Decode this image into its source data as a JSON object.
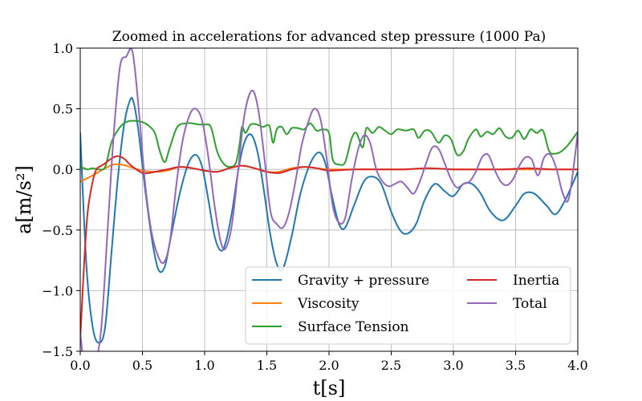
{
  "chart_data": {
    "type": "line",
    "title": "Zoomed in accelerations for advanced step pressure (1000 Pa)",
    "xlabel": "t[s]",
    "ylabel": "a[m/s²]",
    "xlim": [
      0,
      4
    ],
    "ylim": [
      -1.5,
      1.0
    ],
    "xticks": [
      0,
      0.5,
      1,
      1.5,
      2,
      2.5,
      3,
      3.5,
      4
    ],
    "xtick_labels": [
      "0.0",
      "0.5",
      "1.0",
      "1.5",
      "2.0",
      "2.5",
      "3.0",
      "3.5",
      "4.0"
    ],
    "yticks": [
      -1.5,
      -1,
      -0.5,
      0,
      0.5,
      1
    ],
    "ytick_labels": [
      "−1.5",
      "−1.0",
      "−0.5",
      "0.0",
      "0.5",
      "1.0"
    ],
    "grid": true,
    "legend_position": "lower-right",
    "series": [
      {
        "name": "Gravity + pressure",
        "color": "#1f77b4",
        "x": [
          0,
          0.05,
          0.1,
          0.15,
          0.2,
          0.25,
          0.3,
          0.35,
          0.4,
          0.43,
          0.47,
          0.52,
          0.58,
          0.63,
          0.68,
          0.73,
          0.8,
          0.87,
          0.93,
          0.98,
          1.03,
          1.08,
          1.13,
          1.17,
          1.22,
          1.28,
          1.33,
          1.38,
          1.43,
          1.48,
          1.53,
          1.58,
          1.63,
          1.7,
          1.77,
          1.85,
          1.92,
          1.97,
          2.02,
          2.08,
          2.13,
          2.2,
          2.28,
          2.35,
          2.42,
          2.5,
          2.57,
          2.63,
          2.7,
          2.77,
          2.85,
          2.93,
          3.0,
          3.08,
          3.15,
          3.22,
          3.3,
          3.4,
          3.5,
          3.57,
          3.65,
          3.75,
          3.82,
          3.9,
          4.0
        ],
        "y": [
          0.3,
          -0.8,
          -1.3,
          -1.43,
          -1.3,
          -0.7,
          -0.1,
          0.35,
          0.57,
          0.55,
          0.3,
          -0.15,
          -0.6,
          -0.83,
          -0.8,
          -0.55,
          -0.2,
          0.05,
          0.12,
          0.02,
          -0.25,
          -0.55,
          -0.67,
          -0.6,
          -0.35,
          0.05,
          0.25,
          0.28,
          0.12,
          -0.2,
          -0.55,
          -0.78,
          -0.82,
          -0.55,
          -0.2,
          0.05,
          0.14,
          0.05,
          -0.2,
          -0.45,
          -0.48,
          -0.3,
          -0.1,
          -0.06,
          -0.12,
          -0.35,
          -0.5,
          -0.53,
          -0.45,
          -0.25,
          -0.12,
          -0.18,
          -0.22,
          -0.12,
          -0.12,
          -0.2,
          -0.35,
          -0.42,
          -0.3,
          -0.2,
          -0.2,
          -0.3,
          -0.37,
          -0.25,
          -0.02
        ]
      },
      {
        "name": "Viscosity",
        "color": "#ff7f0e",
        "x": [
          0,
          0.1,
          0.2,
          0.27,
          0.33,
          0.4,
          0.5,
          0.6,
          0.7,
          0.8,
          0.9,
          1.0,
          1.1,
          1.2,
          1.3,
          1.4,
          1.5,
          1.6,
          1.7,
          1.8,
          1.9,
          2.0,
          2.2,
          2.4,
          2.6,
          2.8,
          3.0,
          3.2,
          3.4,
          3.6,
          3.8,
          4.0
        ],
        "y": [
          -0.1,
          -0.05,
          0.01,
          0.04,
          0.04,
          0.02,
          -0.01,
          -0.02,
          -0.01,
          0.02,
          0.01,
          -0.01,
          -0.02,
          0.01,
          0.03,
          0.01,
          -0.02,
          -0.02,
          0.01,
          0.02,
          0.01,
          0.0,
          0.0,
          0.0,
          0.0,
          0.01,
          0.0,
          0.0,
          0.0,
          0.0,
          0.0,
          0.0
        ]
      },
      {
        "name": "Surface Tension",
        "color": "#2ca02c",
        "x": [
          0,
          0.03,
          0.06,
          0.1,
          0.15,
          0.2,
          0.25,
          0.3,
          0.35,
          0.4,
          0.45,
          0.5,
          0.55,
          0.6,
          0.64,
          0.68,
          0.72,
          0.78,
          0.85,
          0.9,
          0.95,
          1.0,
          1.05,
          1.1,
          1.15,
          1.2,
          1.25,
          1.28,
          1.3,
          1.33,
          1.37,
          1.42,
          1.47,
          1.52,
          1.55,
          1.58,
          1.62,
          1.66,
          1.7,
          1.75,
          1.8,
          1.85,
          1.9,
          1.95,
          2.0,
          2.03,
          2.08,
          2.13,
          2.18,
          2.22,
          2.27,
          2.3,
          2.35,
          2.4,
          2.45,
          2.5,
          2.55,
          2.62,
          2.68,
          2.72,
          2.77,
          2.82,
          2.88,
          2.93,
          2.98,
          3.03,
          3.08,
          3.12,
          3.18,
          3.22,
          3.27,
          3.32,
          3.37,
          3.42,
          3.47,
          3.52,
          3.57,
          3.62,
          3.67,
          3.72,
          3.77,
          3.82,
          3.87,
          3.92,
          4.0
        ],
        "y": [
          0.02,
          0.01,
          0.0,
          0.01,
          0.0,
          0.02,
          0.22,
          0.32,
          0.38,
          0.4,
          0.4,
          0.39,
          0.36,
          0.3,
          0.15,
          0.06,
          0.18,
          0.35,
          0.38,
          0.38,
          0.37,
          0.37,
          0.35,
          0.15,
          0.05,
          0.02,
          0.05,
          0.2,
          0.35,
          0.3,
          0.37,
          0.37,
          0.35,
          0.36,
          0.22,
          0.33,
          0.35,
          0.29,
          0.34,
          0.34,
          0.33,
          0.38,
          0.32,
          0.33,
          0.3,
          0.08,
          0.04,
          0.06,
          0.25,
          0.3,
          0.18,
          0.34,
          0.3,
          0.35,
          0.32,
          0.29,
          0.33,
          0.32,
          0.33,
          0.26,
          0.32,
          0.31,
          0.22,
          0.28,
          0.25,
          0.12,
          0.15,
          0.25,
          0.33,
          0.27,
          0.31,
          0.29,
          0.34,
          0.27,
          0.26,
          0.32,
          0.25,
          0.33,
          0.3,
          0.32,
          0.15,
          0.13,
          0.15,
          0.2,
          0.31
        ]
      },
      {
        "name": "Inertia",
        "color": "#d62728",
        "x": [
          0,
          0.03,
          0.06,
          0.1,
          0.13,
          0.17,
          0.2,
          0.25,
          0.3,
          0.35,
          0.4,
          0.45,
          0.5,
          0.55,
          0.6,
          0.7,
          0.8,
          0.9,
          1.0,
          1.1,
          1.2,
          1.3,
          1.4,
          1.5,
          1.6,
          1.7,
          1.8,
          1.9,
          2.0,
          2.2,
          2.4,
          2.6,
          2.8,
          3.0,
          3.2,
          3.4,
          3.6,
          3.8,
          4.0
        ],
        "y": [
          -1.4,
          -0.8,
          -0.35,
          -0.1,
          0.0,
          0.03,
          0.05,
          0.09,
          0.11,
          0.09,
          0.04,
          0.0,
          -0.03,
          -0.03,
          -0.02,
          0.0,
          0.02,
          0.01,
          -0.01,
          -0.02,
          0.01,
          0.03,
          0.01,
          -0.02,
          -0.03,
          0.0,
          0.02,
          0.01,
          -0.01,
          0.0,
          0.0,
          0.0,
          0.01,
          0.0,
          0.0,
          0.0,
          0.01,
          0.0,
          0.0
        ]
      },
      {
        "name": "Total",
        "color": "#9467bd",
        "x": [
          0,
          0.03,
          0.07,
          0.12,
          0.17,
          0.22,
          0.27,
          0.32,
          0.37,
          0.42,
          0.47,
          0.52,
          0.57,
          0.62,
          0.67,
          0.72,
          0.77,
          0.82,
          0.88,
          0.93,
          0.98,
          1.03,
          1.08,
          1.13,
          1.17,
          1.22,
          1.27,
          1.32,
          1.38,
          1.43,
          1.48,
          1.53,
          1.58,
          1.63,
          1.68,
          1.73,
          1.78,
          1.83,
          1.88,
          1.93,
          1.98,
          2.03,
          2.08,
          2.13,
          2.18,
          2.23,
          2.28,
          2.33,
          2.38,
          2.43,
          2.48,
          2.53,
          2.58,
          2.63,
          2.68,
          2.73,
          2.78,
          2.83,
          2.88,
          2.93,
          2.98,
          3.03,
          3.08,
          3.13,
          3.18,
          3.23,
          3.28,
          3.33,
          3.38,
          3.43,
          3.48,
          3.53,
          3.58,
          3.63,
          3.68,
          3.73,
          3.78,
          3.83,
          3.88,
          3.93,
          4.0
        ],
        "y": [
          -1.35,
          -1.6,
          -1.65,
          -1.6,
          -1.3,
          -0.5,
          0.3,
          0.85,
          0.93,
          0.97,
          0.5,
          -0.1,
          -0.5,
          -0.7,
          -0.77,
          -0.6,
          -0.15,
          0.22,
          0.45,
          0.5,
          0.4,
          0.1,
          -0.3,
          -0.6,
          -0.65,
          -0.45,
          0.0,
          0.45,
          0.65,
          0.5,
          0.1,
          -0.35,
          -0.45,
          -0.48,
          -0.35,
          -0.1,
          0.2,
          0.38,
          0.5,
          0.42,
          0.1,
          -0.3,
          -0.44,
          -0.4,
          -0.1,
          0.15,
          0.28,
          0.22,
          0.0,
          -0.1,
          -0.14,
          -0.12,
          -0.1,
          -0.15,
          -0.2,
          -0.1,
          0.05,
          0.18,
          0.17,
          0.05,
          -0.08,
          -0.15,
          -0.12,
          -0.1,
          -0.02,
          0.1,
          0.12,
          0.0,
          -0.1,
          -0.13,
          -0.08,
          0.03,
          0.1,
          0.08,
          -0.05,
          0.1,
          0.12,
          0.0,
          -0.2,
          -0.23,
          0.3
        ]
      }
    ]
  }
}
